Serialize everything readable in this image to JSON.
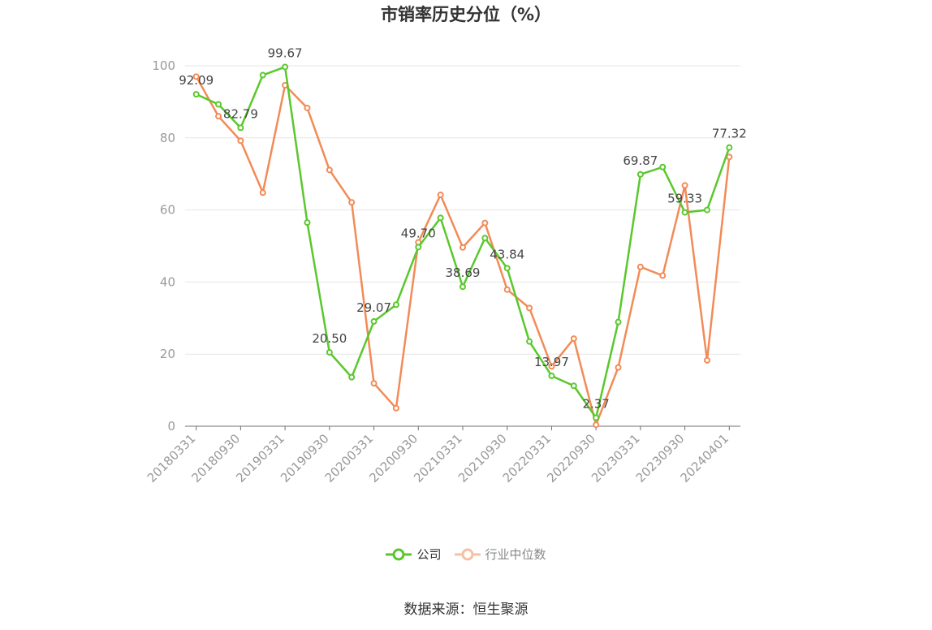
{
  "chart_data": {
    "type": "line",
    "title": "市销率历史分位（%）",
    "ylim": [
      0,
      100
    ],
    "yticks": [
      0,
      20,
      40,
      60,
      80,
      100
    ],
    "grid": true,
    "legend_position": "bottom",
    "x": [
      "20180331",
      "20180630",
      "20180930",
      "20181231",
      "20190331",
      "20190630",
      "20190930",
      "20191231",
      "20200331",
      "20200630",
      "20200930",
      "20201231",
      "20210331",
      "20210630",
      "20210930",
      "20211231",
      "20220331",
      "20220630",
      "20220930",
      "20221231",
      "20230331",
      "20230630",
      "20230930",
      "20231231",
      "20240401"
    ],
    "xtick_labels": [
      "20180331",
      "20180930",
      "20190331",
      "20190930",
      "20200331",
      "20200930",
      "20210331",
      "20210930",
      "20220331",
      "20220930",
      "20230331",
      "20230930",
      "20240401"
    ],
    "series": [
      {
        "name": "公司",
        "color": "#5ac82d",
        "values": [
          92.09,
          89.3,
          82.79,
          97.4,
          99.67,
          56.5,
          20.5,
          13.6,
          29.07,
          33.7,
          49.7,
          57.8,
          38.69,
          52.2,
          43.84,
          23.5,
          13.97,
          11.2,
          2.37,
          28.9,
          69.87,
          71.9,
          59.33,
          60.0,
          77.32
        ]
      },
      {
        "name": "行业中位数",
        "color": "#f28b57",
        "values": [
          97.0,
          86.0,
          79.2,
          64.8,
          94.6,
          88.3,
          71.1,
          62.1,
          11.9,
          5.0,
          51.0,
          64.2,
          49.6,
          56.4,
          37.9,
          32.8,
          16.6,
          24.3,
          0.4,
          16.3,
          44.2,
          41.8,
          66.8,
          18.3,
          74.7
        ]
      }
    ],
    "data_labels": [
      {
        "series": 0,
        "index": 0,
        "text": "92.09"
      },
      {
        "series": 0,
        "index": 2,
        "text": "82.79"
      },
      {
        "series": 0,
        "index": 4,
        "text": "99.67"
      },
      {
        "series": 0,
        "index": 6,
        "text": "20.50"
      },
      {
        "series": 0,
        "index": 8,
        "text": "29.07"
      },
      {
        "series": 0,
        "index": 10,
        "text": "49.70"
      },
      {
        "series": 0,
        "index": 12,
        "text": "38.69"
      },
      {
        "series": 0,
        "index": 14,
        "text": "43.84"
      },
      {
        "series": 0,
        "index": 16,
        "text": "13.97"
      },
      {
        "series": 0,
        "index": 18,
        "text": "2.37"
      },
      {
        "series": 0,
        "index": 20,
        "text": "69.87"
      },
      {
        "series": 0,
        "index": 22,
        "text": "59.33"
      },
      {
        "series": 0,
        "index": 24,
        "text": "77.32"
      }
    ]
  },
  "legend": {
    "company_label": "公司",
    "industry_label": "行业中位数"
  },
  "source": "数据来源：恒生聚源"
}
